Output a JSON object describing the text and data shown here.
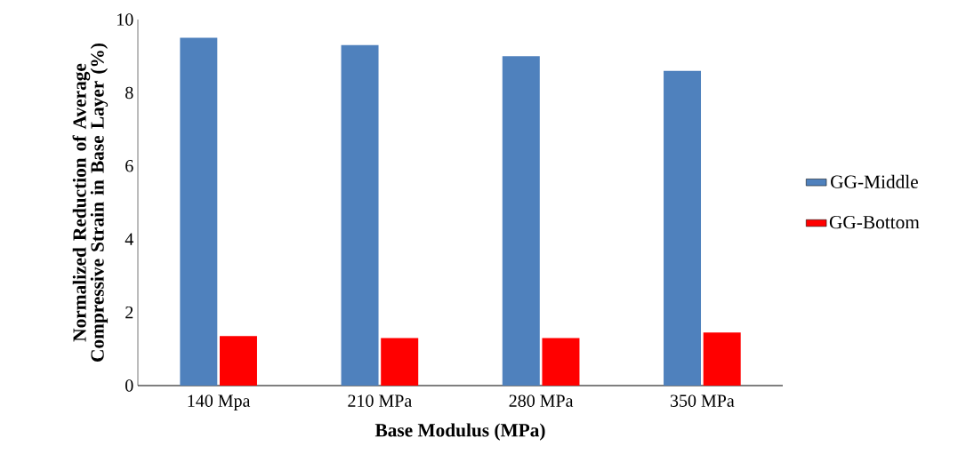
{
  "chart_data": {
    "type": "bar",
    "xlabel": "Base Modulus (MPa)",
    "ylabel": "Normalized Reduction of Average Compressive Strain in Base Layer (%)",
    "categories": [
      "140 Mpa",
      "210 MPa",
      "280 MPa",
      "350 MPa"
    ],
    "series": [
      {
        "name": "GG-Middle",
        "color": "#4f81bd",
        "values": [
          9.5,
          9.3,
          9.0,
          8.6
        ]
      },
      {
        "name": "GG-Bottom",
        "color": "#ff0000",
        "values": [
          1.35,
          1.3,
          1.3,
          1.45
        ]
      }
    ],
    "ylim": [
      0,
      10
    ],
    "yticks": [
      0,
      2,
      4,
      6,
      8,
      10
    ],
    "grid": false,
    "legend": "right"
  }
}
